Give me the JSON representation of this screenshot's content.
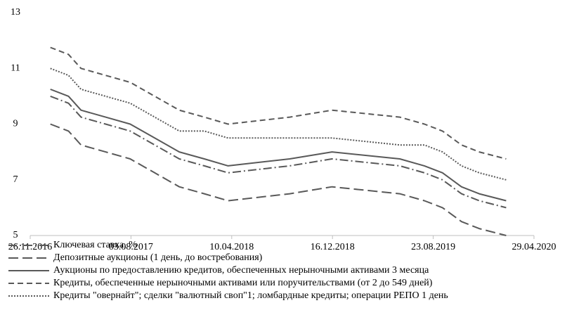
{
  "chart_data": {
    "type": "line",
    "x": [
      "15.01.2017",
      "01.03.2017",
      "01.04.2017",
      "01.06.2017",
      "01.08.2017",
      "01.10.2017",
      "01.12.2017",
      "01.02.2018",
      "01.04.2018",
      "01.09.2018",
      "15.12.2018",
      "01.06.2019",
      "01.08.2019",
      "15.09.2019",
      "01.11.2019",
      "15.12.2019",
      "20.02.2020"
    ],
    "series": [
      {
        "name": "Ключевая ставка, %",
        "color": "#595959",
        "line_style": "dashdot",
        "values": [
          10.0,
          9.75,
          9.25,
          9.0,
          8.75,
          8.25,
          7.75,
          7.5,
          7.25,
          7.5,
          7.75,
          7.5,
          7.25,
          7.0,
          6.5,
          6.25,
          6.0
        ]
      },
      {
        "name": "Депозитные аукционы (1 день, до востребования)",
        "color": "#595959",
        "line_style": "longdash",
        "values": [
          9.0,
          8.75,
          8.25,
          8.0,
          7.75,
          7.25,
          6.75,
          6.5,
          6.25,
          6.5,
          6.75,
          6.5,
          6.25,
          6.0,
          5.5,
          5.25,
          5.0
        ]
      },
      {
        "name": "Аукционы по предоставлению кредитов, обеспеченных нерыночными активами 3 месяца",
        "color": "#595959",
        "line_style": "solid",
        "values": [
          10.25,
          10.0,
          9.5,
          9.25,
          9.0,
          8.5,
          8.0,
          7.75,
          7.5,
          7.75,
          8.0,
          7.75,
          7.5,
          7.25,
          6.75,
          6.5,
          6.25
        ]
      },
      {
        "name": "Кредиты, обеспеченные нерыночными активами или поручительствами (от 2 до 549 дней)",
        "color": "#595959",
        "line_style": "dashed",
        "values": [
          11.75,
          11.5,
          11.0,
          10.75,
          10.5,
          10.0,
          9.5,
          9.25,
          9.0,
          9.25,
          9.5,
          9.25,
          9.0,
          8.75,
          8.25,
          8.0,
          7.75
        ]
      },
      {
        "name": "Кредиты \"овернайт\"; сделки \"валютный своп\"1; ломбардные кредиты; операции РЕПО 1 день",
        "color": "#595959",
        "line_style": "dotted",
        "values": [
          11.0,
          10.75,
          10.25,
          10.0,
          9.75,
          9.25,
          8.75,
          8.75,
          8.5,
          8.5,
          8.5,
          8.25,
          8.25,
          8.0,
          7.5,
          7.25,
          7.0
        ]
      }
    ],
    "xlim": [
      "26.11.2016",
      "29.04.2020"
    ],
    "xticks": [
      "26.11.2016",
      "03.08.2017",
      "10.04.2018",
      "16.12.2018",
      "23.08.2019",
      "29.04.2020"
    ],
    "ylim": [
      5,
      13
    ],
    "yticks": [
      5,
      7,
      9,
      11,
      13
    ],
    "grid": false,
    "legend": "bottom"
  }
}
